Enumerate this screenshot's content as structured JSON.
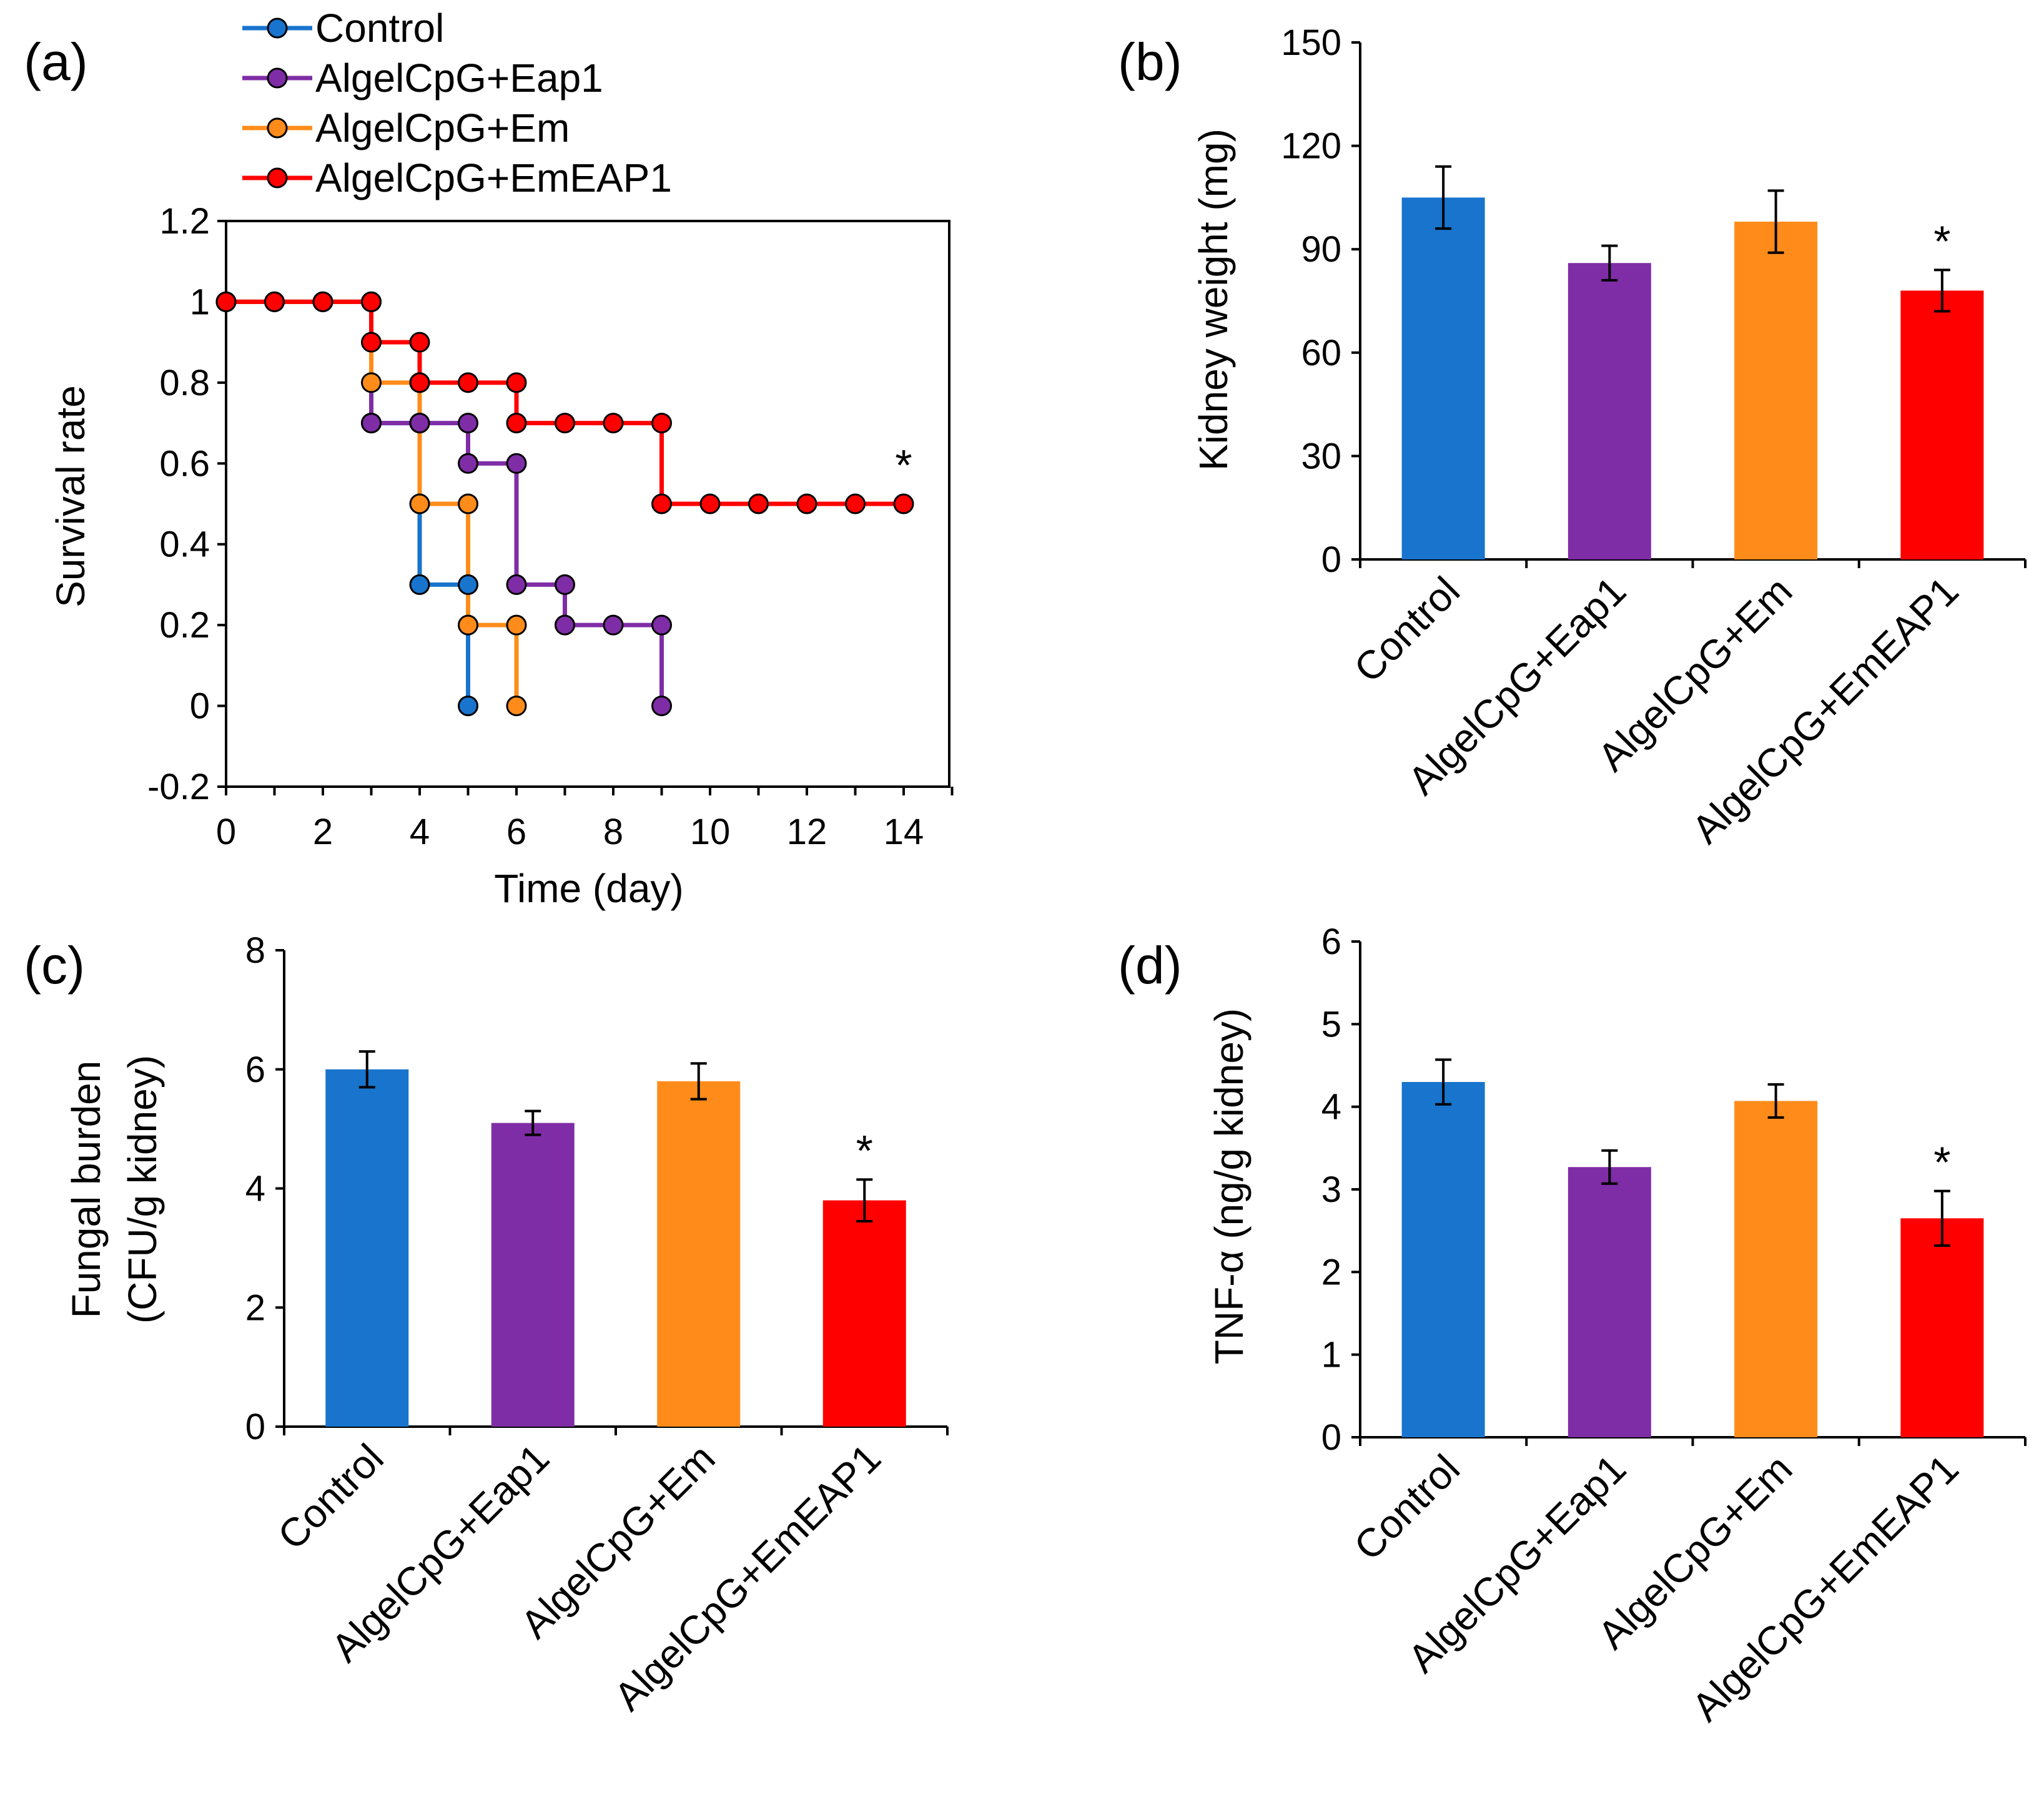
{
  "chart_data": [
    {
      "panel": "(a)",
      "type": "line",
      "xlabel": "Time (day)",
      "ylabel": "Survival rate",
      "xlim": [
        0,
        15
      ],
      "ylim": [
        -0.2,
        1.2
      ],
      "xticks": [
        "0",
        "2",
        "4",
        "6",
        "8",
        "10",
        "12",
        "14"
      ],
      "yticks": [
        "-0.2",
        "0",
        "0.2",
        "0.4",
        "0.6",
        "0.8",
        "1",
        "1.2"
      ],
      "legend": "top-left, above plot",
      "annotation": "*",
      "series": [
        {
          "name": "Control",
          "color": "#1874CD",
          "x": [
            0,
            1,
            2,
            3,
            3,
            4,
            4,
            5,
            5
          ],
          "y": [
            1,
            1,
            1,
            1,
            0.7,
            0.7,
            0.3,
            0.3,
            0
          ]
        },
        {
          "name": "AlgelCpG+Eap1",
          "color": "#7F2DA6",
          "x": [
            0,
            1,
            2,
            3,
            3,
            4,
            5,
            5,
            6,
            6,
            7,
            7,
            8,
            9,
            9
          ],
          "y": [
            1,
            1,
            1,
            1,
            0.7,
            0.7,
            0.7,
            0.6,
            0.6,
            0.3,
            0.3,
            0.2,
            0.2,
            0.2,
            0
          ]
        },
        {
          "name": "AlgelCpG+Em",
          "color": "#FF8C1A",
          "x": [
            0,
            1,
            2,
            3,
            3,
            4,
            4,
            5,
            5,
            6,
            6
          ],
          "y": [
            1,
            1,
            1,
            1,
            0.8,
            0.8,
            0.5,
            0.5,
            0.2,
            0.2,
            0
          ]
        },
        {
          "name": "AlgelCpG+EmEAP1",
          "color": "#FF0000",
          "x": [
            0,
            1,
            2,
            3,
            3,
            4,
            4,
            5,
            6,
            6,
            7,
            8,
            9,
            9,
            10,
            11,
            12,
            13,
            14
          ],
          "y": [
            1,
            1,
            1,
            1,
            0.9,
            0.9,
            0.8,
            0.8,
            0.8,
            0.7,
            0.7,
            0.7,
            0.7,
            0.5,
            0.5,
            0.5,
            0.5,
            0.5,
            0.5
          ]
        }
      ]
    },
    {
      "panel": "(b)",
      "type": "bar",
      "ylabel": "Kidney weight (mg)",
      "ylim": [
        0,
        150
      ],
      "yticks": [
        "0",
        "30",
        "60",
        "90",
        "120",
        "150"
      ],
      "categories": [
        "Control",
        "AlgelCpG+Eap1",
        "AlgelCpG+Em",
        "AlgelCpG+EmEAP1"
      ],
      "values": [
        105,
        86,
        98,
        78
      ],
      "errors": [
        9,
        5,
        9,
        6
      ],
      "colors": [
        "#1874CD",
        "#7F2DA6",
        "#FF8C1A",
        "#FF0000"
      ],
      "significance": [
        "",
        "",
        "",
        "*"
      ]
    },
    {
      "panel": "(c)",
      "type": "bar",
      "ylabel": [
        "Fungal burden",
        "(CFU/g kidney)"
      ],
      "ylim": [
        0,
        8
      ],
      "yticks": [
        "0",
        "2",
        "4",
        "6",
        "8"
      ],
      "categories": [
        "Control",
        "AlgelCpG+Eap1",
        "AlgelCpG+Em",
        "AlgelCpG+EmEAP1"
      ],
      "values": [
        6.0,
        5.1,
        5.8,
        3.8
      ],
      "errors": [
        0.3,
        0.2,
        0.3,
        0.35
      ],
      "colors": [
        "#1874CD",
        "#7F2DA6",
        "#FF8C1A",
        "#FF0000"
      ],
      "significance": [
        "",
        "",
        "",
        "*"
      ]
    },
    {
      "panel": "(d)",
      "type": "bar",
      "ylabel": "TNF-α (ng/g kidney)",
      "ylim": [
        0,
        6
      ],
      "yticks": [
        "0",
        "1",
        "2",
        "3",
        "4",
        "5",
        "6"
      ],
      "categories": [
        "Control",
        "AlgelCpG+Eap1",
        "AlgelCpG+Em",
        "AlgelCpG+EmEAP1"
      ],
      "values": [
        4.3,
        3.27,
        4.07,
        2.65
      ],
      "errors": [
        0.27,
        0.2,
        0.2,
        0.33
      ],
      "colors": [
        "#1874CD",
        "#7F2DA6",
        "#FF8C1A",
        "#FF0000"
      ],
      "significance": [
        "",
        "",
        "",
        "*"
      ]
    }
  ]
}
